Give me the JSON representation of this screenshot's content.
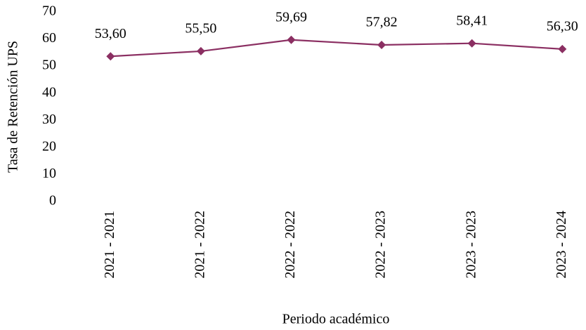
{
  "chart_data": {
    "type": "line",
    "x_label": "Periodo académico",
    "y_label": "Tasa de Retención UPS",
    "categories": [
      "2021 - 2021",
      "2021 - 2022",
      "2022 - 2022",
      "2022 - 2023",
      "2023 - 2023",
      "2023 - 2024"
    ],
    "series": [
      {
        "name": "Tasa de Retención UPS",
        "color": "#8b2f62",
        "values": [
          53.6,
          55.5,
          59.69,
          57.82,
          58.41,
          56.3
        ],
        "value_labels": [
          "53,60",
          "55,50",
          "59,69",
          "57,82",
          "58,41",
          "56,30"
        ]
      }
    ],
    "ylim": [
      0,
      70
    ],
    "yticks": [
      0,
      10,
      20,
      30,
      40,
      50,
      60,
      70
    ],
    "grid": false
  }
}
